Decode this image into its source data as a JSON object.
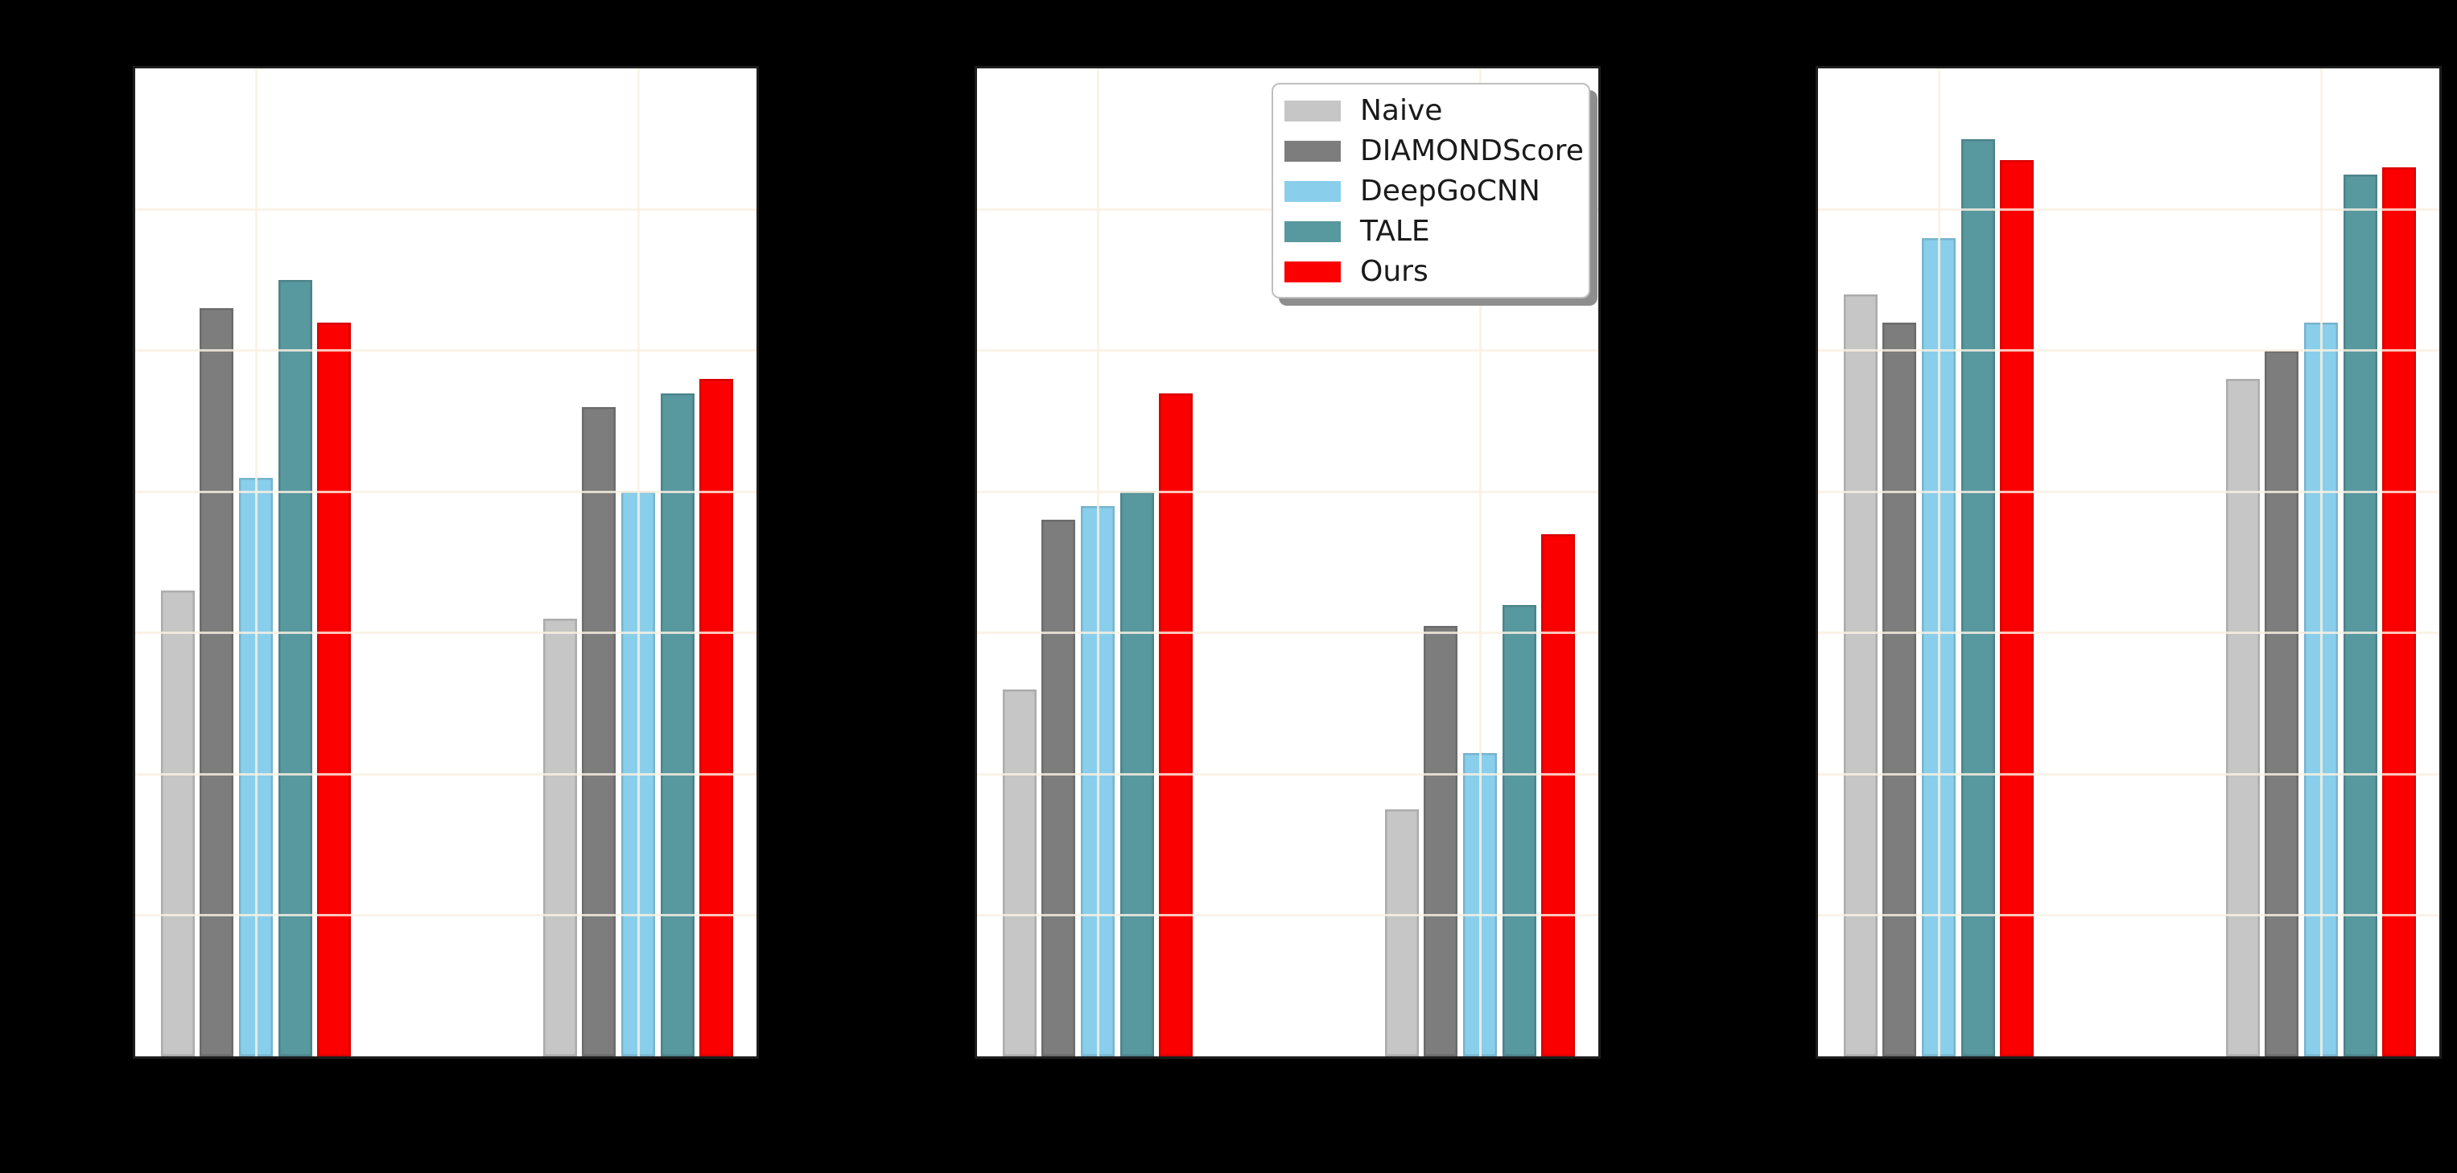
{
  "style": {
    "figure_background": "#000000",
    "panel_background": "#ffffff",
    "spine_color": "#1d1d1d",
    "gridline_color": "rgba(249,240,226,0.82)",
    "note": "Axis tick labels and titles are rendered black-on-black and are not visible in the screenshot."
  },
  "legend": {
    "entries": [
      {
        "label": "Naive",
        "color": "#c6c6c6"
      },
      {
        "label": "DIAMONDScore",
        "color": "#7d7d7d"
      },
      {
        "label": "DeepGoCNN",
        "color": "#89cfec"
      },
      {
        "label": "TALE",
        "color": "#58989f"
      },
      {
        "label": "Ours",
        "color": "#fb0000"
      }
    ],
    "position": "upper-right of middle panel",
    "shadow": true
  },
  "chart_data": {
    "type": "bar",
    "ylim": [
      0,
      0.7
    ],
    "ytick_step": 0.1,
    "grid": "horizontal lines every 0.1 and one vertical line per group center, drawn above bars",
    "legend_entries": [
      "Naive",
      "DIAMONDScore",
      "DeepGoCNN",
      "TALE",
      "Ours"
    ],
    "categories": [
      "",
      ""
    ],
    "panels": [
      {
        "name": "left-panel",
        "series": [
          {
            "name": "Naive",
            "values": [
              0.33,
              0.31
            ]
          },
          {
            "name": "DIAMONDScore",
            "values": [
              0.53,
              0.46
            ]
          },
          {
            "name": "DeepGoCNN",
            "values": [
              0.41,
              0.4
            ]
          },
          {
            "name": "TALE",
            "values": [
              0.55,
              0.47
            ]
          },
          {
            "name": "Ours",
            "values": [
              0.52,
              0.48
            ]
          }
        ]
      },
      {
        "name": "middle-panel",
        "series": [
          {
            "name": "Naive",
            "values": [
              0.26,
              0.175
            ]
          },
          {
            "name": "DIAMONDScore",
            "values": [
              0.38,
              0.305
            ]
          },
          {
            "name": "DeepGoCNN",
            "values": [
              0.39,
              0.215
            ]
          },
          {
            "name": "TALE",
            "values": [
              0.4,
              0.32
            ]
          },
          {
            "name": "Ours",
            "values": [
              0.47,
              0.37
            ]
          }
        ]
      },
      {
        "name": "right-panel",
        "series": [
          {
            "name": "Naive",
            "values": [
              0.54,
              0.48
            ]
          },
          {
            "name": "DIAMONDScore",
            "values": [
              0.52,
              0.5
            ]
          },
          {
            "name": "DeepGoCNN",
            "values": [
              0.58,
              0.52
            ]
          },
          {
            "name": "TALE",
            "values": [
              0.65,
              0.625
            ]
          },
          {
            "name": "Ours",
            "values": [
              0.635,
              0.63
            ]
          }
        ]
      }
    ]
  }
}
